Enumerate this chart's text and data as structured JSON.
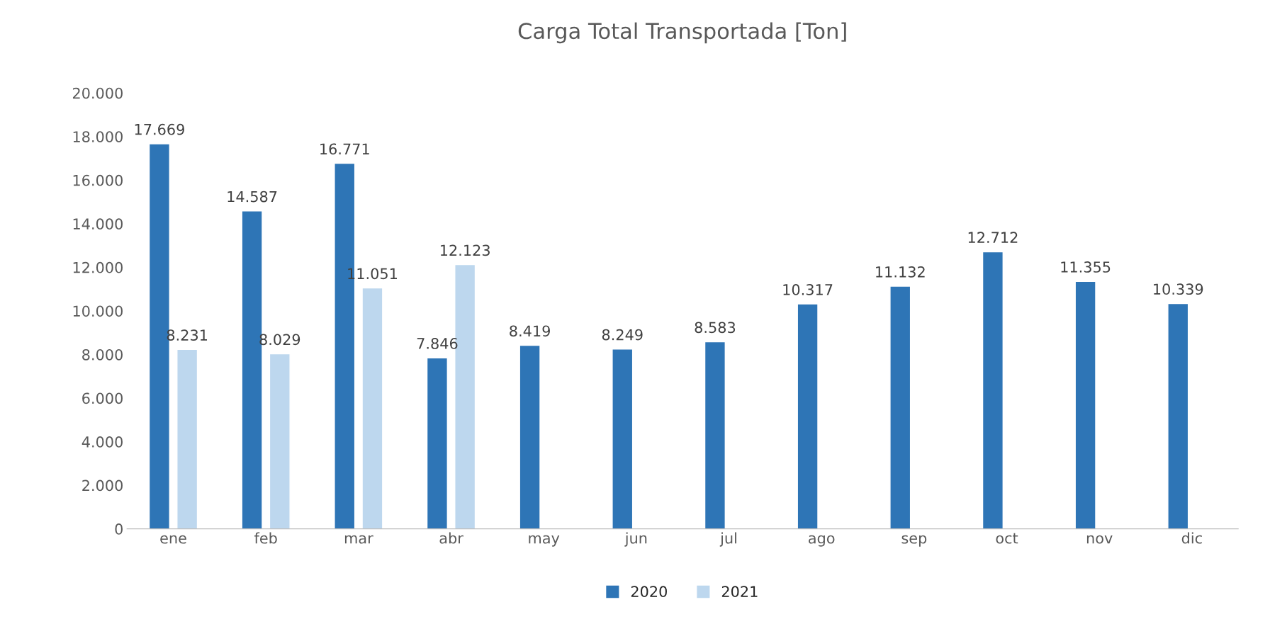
{
  "chart_data": {
    "type": "bar",
    "title": "Carga Total Transportada [Ton]",
    "categories": [
      "ene",
      "feb",
      "mar",
      "abr",
      "may",
      "jun",
      "jul",
      "ago",
      "sep",
      "oct",
      "nov",
      "dic"
    ],
    "series": [
      {
        "name": "2020",
        "color": "#2e75b6",
        "values": [
          17669,
          14587,
          16771,
          7846,
          8419,
          8249,
          8583,
          10317,
          11132,
          12712,
          11355,
          10339
        ],
        "value_labels": [
          "17.669",
          "14.587",
          "16.771",
          "7.846",
          "8.419",
          "8.249",
          "8.583",
          "10.317",
          "11.132",
          "12.712",
          "11.355",
          "10.339"
        ]
      },
      {
        "name": "2021",
        "color": "#bdd7ee",
        "values": [
          8231,
          8029,
          11051,
          12123,
          null,
          null,
          null,
          null,
          null,
          null,
          null,
          null
        ],
        "value_labels": [
          "8.231",
          "8.029",
          "11.051",
          "12.123",
          null,
          null,
          null,
          null,
          null,
          null,
          null,
          null
        ]
      }
    ],
    "ylim": [
      0,
      20000
    ],
    "yticks": [
      {
        "value": 0,
        "label": "0"
      },
      {
        "value": 2000,
        "label": "2.000"
      },
      {
        "value": 4000,
        "label": "4.000"
      },
      {
        "value": 6000,
        "label": "6.000"
      },
      {
        "value": 8000,
        "label": "8.000"
      },
      {
        "value": 10000,
        "label": "10.000"
      },
      {
        "value": 12000,
        "label": "12.000"
      },
      {
        "value": 14000,
        "label": "14.000"
      },
      {
        "value": 16000,
        "label": "16.000"
      },
      {
        "value": 18000,
        "label": "18.000"
      },
      {
        "value": 20000,
        "label": "20.000"
      }
    ],
    "grid": false,
    "legend": "bottom"
  }
}
